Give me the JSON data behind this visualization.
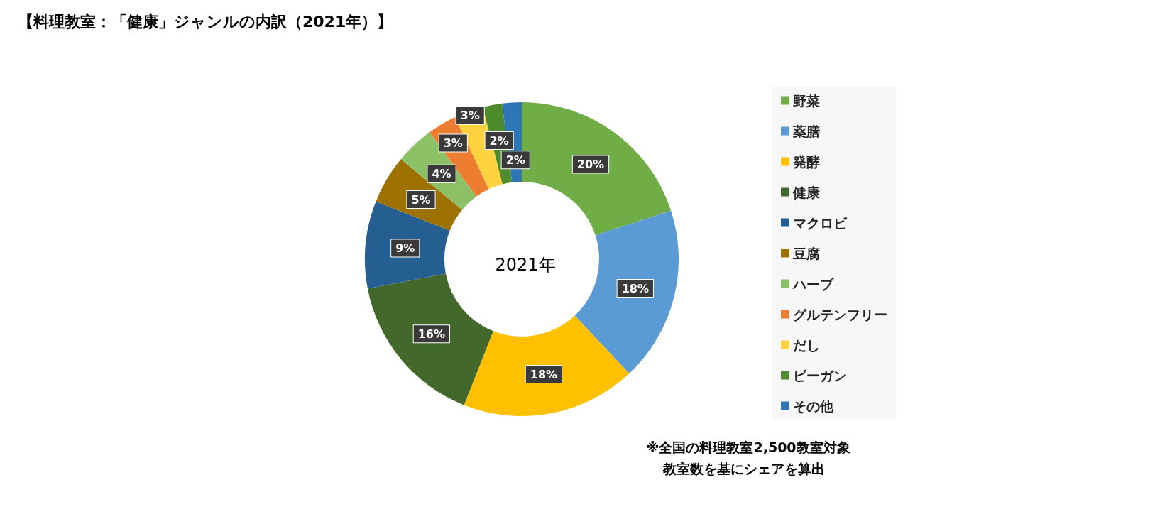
{
  "chart_data": {
    "type": "donut",
    "title": "【料理教室：「健康」ジャンルの内訳（2021年）】",
    "subtitle": "2021年",
    "categories": [
      "野菜",
      "薬膳",
      "発酵",
      "健康",
      "マクロビ",
      "豆腐",
      "ハーブ",
      "グルテンフリー",
      "だし",
      "ビーガン",
      "その他"
    ],
    "values": [
      20,
      18,
      18,
      16,
      9,
      5,
      4,
      3,
      3,
      2,
      2
    ],
    "value_labels": [
      "20%",
      "18%",
      "18%",
      "16%",
      "9%",
      "5%",
      "4%",
      "3%",
      "3%",
      "2%",
      "2%"
    ],
    "colors": [
      "#70ad47",
      "#5b9bd5",
      "#ffc000",
      "#43682b",
      "#255e91",
      "#9e7200",
      "#8cc168",
      "#ed7d31",
      "#ffd33f",
      "#4e8a2e",
      "#2e75b6"
    ],
    "legend": "right",
    "annotations": [
      "※全国の料理教室2,500教室対象",
      "教室数を基にシェアを算出"
    ]
  }
}
